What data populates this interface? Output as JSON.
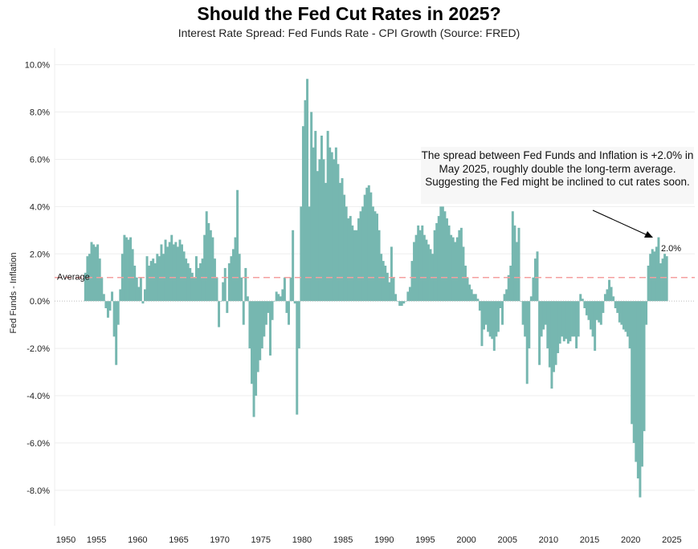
{
  "chart_data": {
    "type": "bar",
    "title": "Should the Fed Cut Rates in 2025?",
    "subtitle": "Interest Rate Spread: Fed Funds Rate - CPI Growth (Source: FRED)",
    "xlabel": "",
    "ylabel": "Fed Funds - Inflation",
    "xlim": [
      1949.9,
      2027.8
    ],
    "ylim": [
      -9.5,
      10.7
    ],
    "x_ticks": [
      "1950",
      "1955",
      "1960",
      "1965",
      "1970",
      "1975",
      "1980",
      "1985",
      "1990",
      "1995",
      "2000",
      "2005",
      "2010",
      "2015",
      "2020",
      "2025"
    ],
    "y_ticks": [
      {
        "value": 10,
        "label": "10.0%"
      },
      {
        "value": 8,
        "label": "8.0%"
      },
      {
        "value": 6,
        "label": "6.0%"
      },
      {
        "value": 4,
        "label": "4.0%"
      },
      {
        "value": 2,
        "label": "2.0%"
      },
      {
        "value": 0,
        "label": "0.0%"
      },
      {
        "value": -2,
        "label": "-2.0%"
      },
      {
        "value": -4,
        "label": "-4.0%"
      },
      {
        "value": -6,
        "label": "-6.0%"
      },
      {
        "value": -8,
        "label": "-8.0%"
      }
    ],
    "grid": true,
    "color": "#76b7b0",
    "average": {
      "value": 1.0,
      "label": "Average",
      "color": "#f4a0a0"
    },
    "last_value_label": "2.0%",
    "annotation": "The spread between Fed Funds and Inflation is +2.0% in May 2025, roughly double the long-term average. Suggesting the Fed might be inclined to cut rates soon.",
    "series": {
      "name": "Fed Funds - Inflation",
      "x_start": 1953.5,
      "x_step": 0.25,
      "values": [
        1.2,
        1.9,
        2.0,
        2.5,
        2.4,
        2.3,
        2.4,
        1.8,
        1.0,
        0.3,
        -0.3,
        -0.7,
        -0.4,
        0.4,
        -1.5,
        -2.7,
        -1.0,
        0.5,
        2.0,
        2.8,
        2.7,
        2.6,
        2.7,
        2.2,
        1.5,
        1.0,
        0.6,
        1.0,
        -0.1,
        0.5,
        1.9,
        1.5,
        1.7,
        1.8,
        1.6,
        2.0,
        1.9,
        2.4,
        2.0,
        2.6,
        2.3,
        2.5,
        2.8,
        2.4,
        2.5,
        2.3,
        2.6,
        2.4,
        2.1,
        1.8,
        1.6,
        1.4,
        1.2,
        1.0,
        1.9,
        1.4,
        1.6,
        1.8,
        2.8,
        3.8,
        3.3,
        3.0,
        2.7,
        1.8,
        1.0,
        -1.1,
        0.0,
        0.8,
        1.4,
        -0.5,
        1.6,
        1.9,
        2.2,
        2.7,
        4.7,
        2.0,
        1.0,
        -1.0,
        1.4,
        0.2,
        -2.0,
        -3.5,
        -4.9,
        -4.0,
        -3.0,
        -2.5,
        -2.0,
        -1.5,
        -1.0,
        -0.5,
        -2.3,
        -0.8,
        0.0,
        0.4,
        0.3,
        0.2,
        0.5,
        1.0,
        -0.5,
        -1.0,
        1.0,
        3.0,
        -0.1,
        -4.8,
        -2.0,
        4.0,
        7.4,
        8.5,
        9.4,
        4.0,
        8.0,
        6.5,
        7.2,
        5.5,
        6.0,
        7.0,
        6.0,
        5.0,
        7.2,
        6.5,
        6.3,
        6.0,
        6.5,
        5.8,
        5.0,
        5.2,
        4.5,
        4.0,
        3.5,
        3.6,
        3.2,
        3.0,
        3.0,
        3.5,
        3.8,
        4.0,
        4.5,
        4.8,
        4.9,
        4.6,
        4.0,
        3.8,
        3.7,
        3.0,
        2.0,
        1.7,
        1.5,
        1.2,
        0.8,
        2.3,
        1.0,
        0.3,
        0.0,
        -0.2,
        -0.2,
        -0.1,
        0.0,
        0.4,
        0.6,
        1.7,
        2.5,
        2.8,
        3.2,
        3.0,
        3.2,
        2.8,
        2.6,
        2.4,
        2.2,
        2.0,
        3.0,
        3.3,
        3.6,
        4.0,
        4.0,
        3.8,
        3.5,
        3.2,
        2.8,
        2.7,
        2.5,
        2.7,
        3.0,
        3.1,
        2.3,
        1.5,
        1.0,
        0.7,
        0.5,
        0.3,
        0.3,
        0.1,
        -0.4,
        -1.9,
        -1.2,
        -1.0,
        -1.3,
        -1.5,
        -1.6,
        -2.1,
        -1.5,
        -1.3,
        -0.3,
        -1.0,
        0.3,
        0.5,
        1.1,
        1.5,
        3.8,
        3.2,
        2.5,
        3.1,
        0.0,
        -1.0,
        -1.5,
        -3.5,
        -2.0,
        0.2,
        1.0,
        1.8,
        2.1,
        -2.7,
        -1.5,
        -1.2,
        -1.0,
        -2.0,
        -2.8,
        -3.7,
        -3.0,
        -2.7,
        -2.2,
        -1.8,
        -1.5,
        -1.7,
        -1.6,
        -1.8,
        -1.7,
        -1.5,
        -1.5,
        -2.0,
        -1.5,
        0.3,
        0.1,
        -0.3,
        -0.6,
        -0.8,
        -1.2,
        -1.5,
        -2.1,
        -0.8,
        -0.9,
        -1.0,
        -0.5,
        0.3,
        0.5,
        0.9,
        0.6,
        0.2,
        -0.3,
        -0.5,
        -0.9,
        -1.0,
        -1.2,
        -1.3,
        -1.5,
        -2.0,
        -5.2,
        -6.0,
        -6.8,
        -7.5,
        -8.3,
        -7.0,
        -5.5,
        -1.0,
        1.5,
        2.0,
        2.2,
        2.1,
        2.3,
        2.7,
        1.6,
        1.8,
        2.0,
        1.9
      ]
    }
  }
}
